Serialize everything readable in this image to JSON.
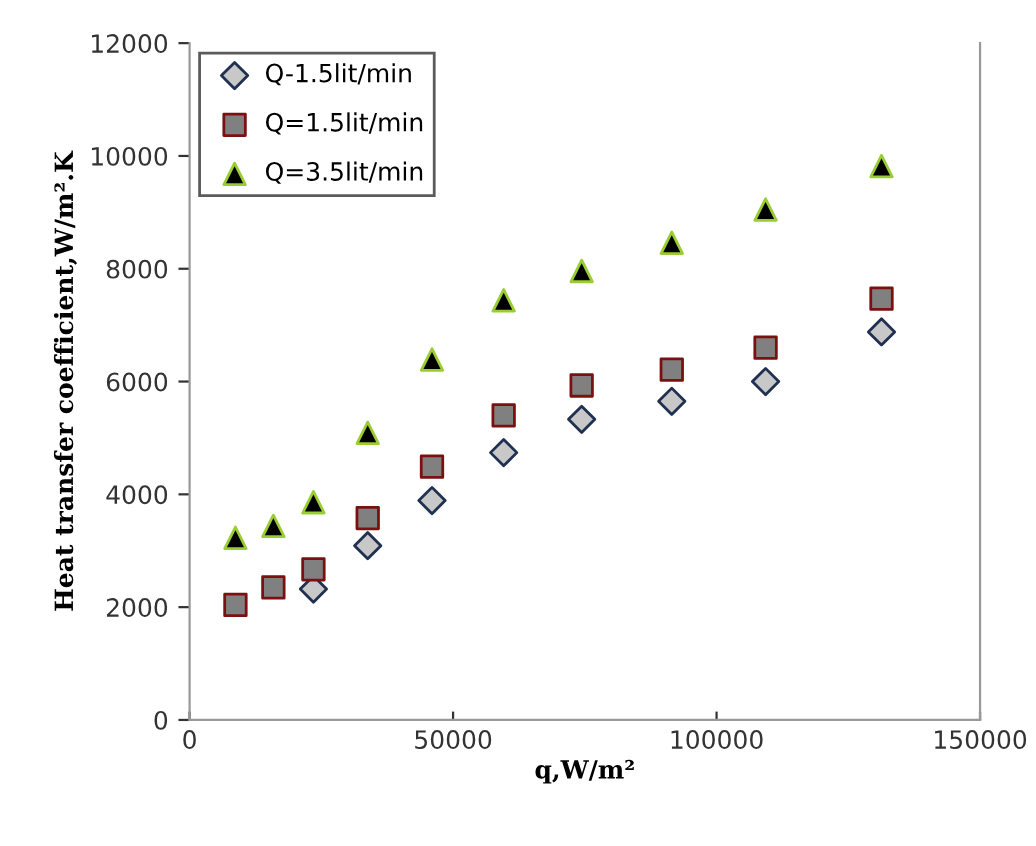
{
  "chart_data": {
    "type": "scatter",
    "xlabel": "q,W/m²",
    "ylabel": "Heat transfer coefficient,W/m².K",
    "x": [
      8700,
      15900,
      23500,
      33800,
      46000,
      59600,
      74400,
      91500,
      109300,
      131300
    ],
    "series": [
      {
        "name": "Q-1.5lit/min",
        "color": "#c8c8c8",
        "marker": "diamond",
        "values": [
          null,
          null,
          2320,
          3090,
          3890,
          4740,
          5330,
          5650,
          6000,
          6880
        ]
      },
      {
        "name": "Q=1.5lit/min",
        "color": "#808080",
        "marker": "square",
        "values": [
          2040,
          2350,
          2670,
          3580,
          4490,
          5400,
          5930,
          6210,
          6600,
          7470
        ]
      },
      {
        "name": "Q=3.5lit/min",
        "color": "#000000",
        "marker": "triangle",
        "values": [
          3230,
          3440,
          3860,
          5090,
          6390,
          7440,
          7960,
          8460,
          9050,
          9820
        ]
      }
    ],
    "xlim": [
      0,
      150000
    ],
    "xticks": [
      0,
      50000,
      100000,
      150000
    ],
    "ylim": [
      0,
      12000
    ],
    "yticks": [
      0,
      2000,
      4000,
      6000,
      8000,
      10000,
      12000
    ],
    "grid": false,
    "legend": "top left"
  }
}
